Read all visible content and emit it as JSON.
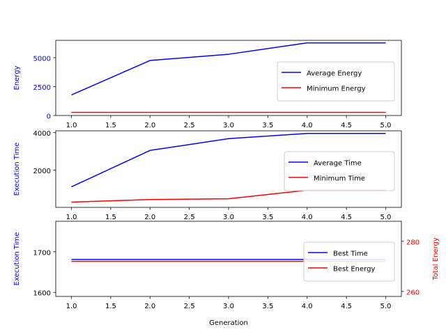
{
  "chart_data": [
    {
      "type": "line",
      "title": "",
      "xlabel": "",
      "ylabel": "Energy",
      "ylabel_color": "#0000ff",
      "tick_color": "#0000ff",
      "x": [
        1.0,
        2.0,
        3.0,
        4.0,
        5.0
      ],
      "xlim": [
        0.8,
        5.2
      ],
      "xticks": [
        "1.0",
        "1.5",
        "2.0",
        "2.5",
        "3.0",
        "3.5",
        "4.0",
        "4.5",
        "5.0"
      ],
      "ylim": [
        0,
        6500
      ],
      "yticks": [
        0,
        2500,
        5000
      ],
      "series": [
        {
          "name": "Average Energy",
          "color": "#0000ff",
          "values": [
            1780,
            4760,
            5300,
            6280,
            6280
          ]
        },
        {
          "name": "Minimum Energy",
          "color": "#ff0000",
          "values": [
            272,
            272,
            272,
            272,
            272
          ]
        }
      ],
      "legend": "center-right",
      "grid": false
    },
    {
      "type": "line",
      "title": "",
      "xlabel": "",
      "ylabel": "Execution Time",
      "ylabel_color": "#0000ff",
      "tick_color": "#000000",
      "x": [
        1.0,
        2.0,
        3.0,
        4.0,
        5.0
      ],
      "xlim": [
        0.8,
        5.2
      ],
      "xticks": [
        "1.0",
        "1.5",
        "2.0",
        "2.5",
        "3.0",
        "3.5",
        "4.0",
        "4.5",
        "5.0"
      ],
      "ylim": [
        0,
        4100
      ],
      "yticks": [
        2000,
        4000
      ],
      "series": [
        {
          "name": "Average Time",
          "color": "#0000ff",
          "values": [
            1100,
            3050,
            3680,
            3960,
            3960
          ]
        },
        {
          "name": "Minimum Time",
          "color": "#ff0000",
          "values": [
            280,
            420,
            460,
            920,
            920
          ]
        }
      ],
      "legend": "center-right",
      "grid": false
    },
    {
      "type": "line",
      "title": "",
      "xlabel": "Generation",
      "ylabel": "Execution Time",
      "ylabel_color": "#0000ff",
      "ylabel_right": "Total Energy",
      "ylabel_right_color": "#ff0000",
      "tick_color": "#000000",
      "right_tick_color": "#ff0000",
      "x": [
        1.0,
        2.0,
        3.0,
        4.0,
        5.0
      ],
      "xlim": [
        0.8,
        5.2
      ],
      "xticks": [
        "1.0",
        "1.5",
        "2.0",
        "2.5",
        "3.0",
        "3.5",
        "4.0",
        "4.5",
        "5.0"
      ],
      "ylim": [
        1590,
        1775
      ],
      "yticks": [
        1600,
        1700
      ],
      "ylim_right": [
        258,
        288
      ],
      "yticks_right": [
        260,
        280
      ],
      "series": [
        {
          "name": "Best Time",
          "color": "#0000ff",
          "axis": "left",
          "values": [
            1681,
            1681,
            1681,
            1681,
            1681
          ]
        },
        {
          "name": "Best Energy",
          "color": "#ff0000",
          "axis": "right",
          "values": [
            272,
            272,
            272,
            272,
            272
          ]
        }
      ],
      "legend": "center-right",
      "grid": false
    }
  ]
}
